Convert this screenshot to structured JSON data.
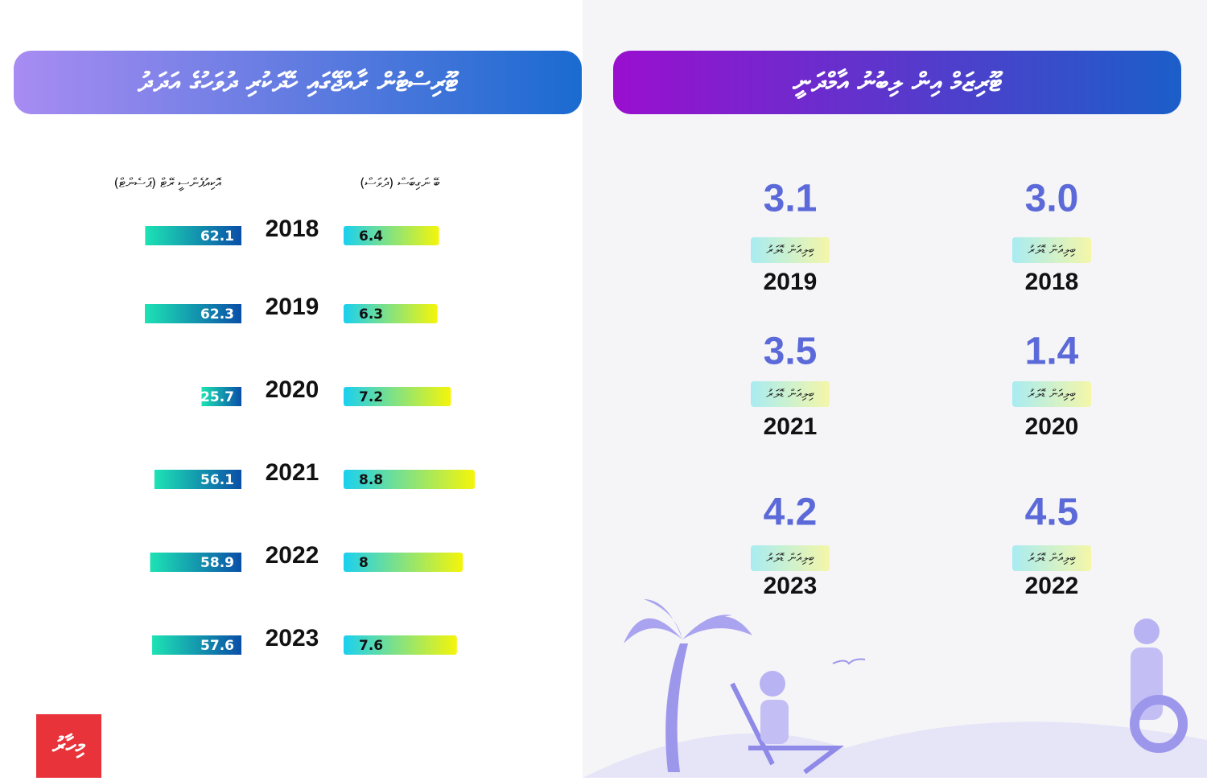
{
  "chart_data": [
    {
      "type": "bar",
      "title": "ޓޫރިސްޓުން ރާއްޖޭގައި ހޭދަކުރި ދުވަހުގެ އަދަދު",
      "categories": [
        "2018",
        "2019",
        "2020",
        "2021",
        "2022",
        "2023"
      ],
      "series": [
        {
          "name": "އޮކިއުޕެންސީ ރޭޓް (ޕަސެންޓް)",
          "color": "#0a5fb0",
          "values": [
            62.1,
            62.3,
            25.7,
            56.1,
            58.9,
            57.6
          ]
        },
        {
          "name": "ބޭ ނަގިބަސް (ދުވަސް)",
          "color": "#f2f20a",
          "values": [
            6.4,
            6.3,
            7.2,
            8.8,
            8,
            7.6
          ]
        }
      ]
    },
    {
      "type": "stat",
      "title": "ޓޫރިޒަމް އިން ލިބުނު އާމްދަނީ",
      "categories": [
        "2018",
        "2019",
        "2020",
        "2021",
        "2022",
        "2023"
      ],
      "values": [
        3.0,
        3.1,
        1.4,
        3.5,
        4.5,
        4.2
      ],
      "value_labels": [
        "3.0",
        "3.1",
        "1.4",
        "3.5",
        "4.5",
        "4.2"
      ],
      "unit": "ބިލިއަން ޑޮލަރު",
      "color": "#5b6ad8"
    }
  ],
  "logo": "މިހާރު"
}
